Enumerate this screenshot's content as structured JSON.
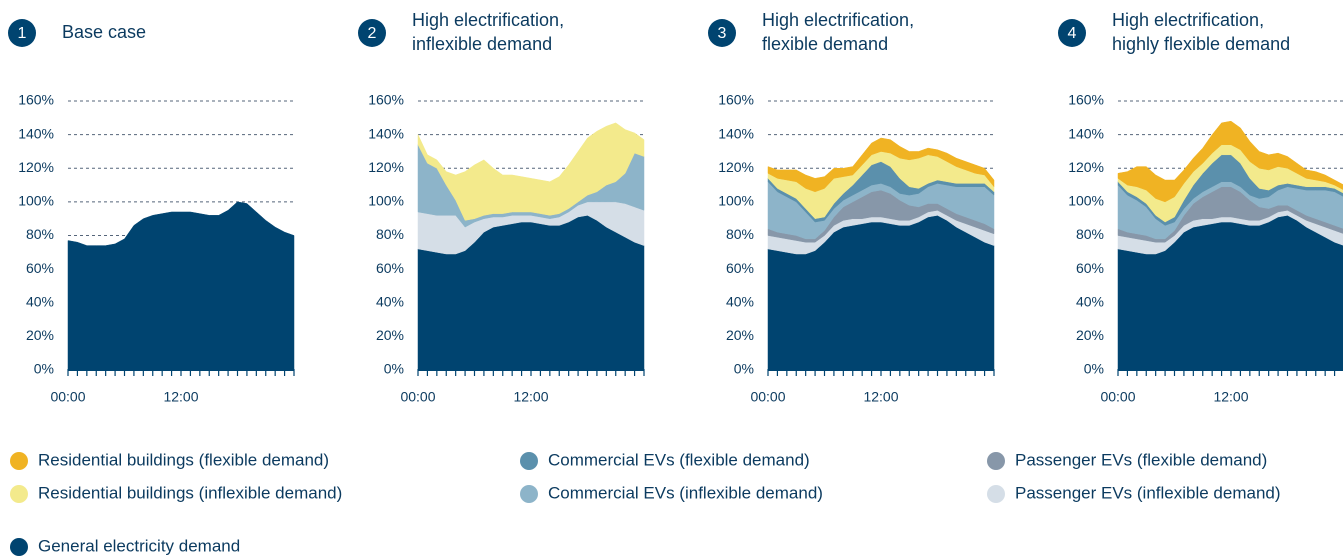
{
  "chart_data": [
    {
      "type": "area",
      "stacked": true,
      "number": 1,
      "title": [
        "Base case"
      ],
      "x": [
        0,
        1,
        2,
        3,
        4,
        5,
        6,
        7,
        8,
        9,
        10,
        11,
        12,
        13,
        14,
        15,
        16,
        17,
        18,
        19,
        20,
        21,
        22,
        23,
        24
      ],
      "xlim": [
        0,
        24
      ],
      "xticks": [
        {
          "value": 0,
          "label": "00:00"
        },
        {
          "value": 12,
          "label": "12:00"
        }
      ],
      "ylim": [
        0,
        160
      ],
      "yticks": [
        {
          "value": 0,
          "label": "0%"
        },
        {
          "value": 20,
          "label": "20%"
        },
        {
          "value": 40,
          "label": "40%"
        },
        {
          "value": 60,
          "label": "60%"
        },
        {
          "value": 80,
          "label": "80%"
        },
        {
          "value": 100,
          "label": "100%"
        },
        {
          "value": 120,
          "label": "120%"
        },
        {
          "value": 140,
          "label": "140%"
        },
        {
          "value": 160,
          "label": "160%"
        }
      ],
      "grid": true,
      "series": [
        {
          "name": "General electricity demand",
          "color": "#004470",
          "values": [
            77,
            76,
            74,
            74,
            74,
            75,
            78,
            86,
            90,
            92,
            93,
            94,
            94,
            94,
            93,
            92,
            92,
            95,
            100,
            99,
            94,
            89,
            85,
            82,
            80
          ]
        }
      ]
    },
    {
      "type": "area",
      "stacked": true,
      "number": 2,
      "title": [
        "High electrification,",
        "inflexible demand"
      ],
      "x": [
        0,
        1,
        2,
        3,
        4,
        5,
        6,
        7,
        8,
        9,
        10,
        11,
        12,
        13,
        14,
        15,
        16,
        17,
        18,
        19,
        20,
        21,
        22,
        23,
        24
      ],
      "xlim": [
        0,
        24
      ],
      "xticks": [
        {
          "value": 0,
          "label": "00:00"
        },
        {
          "value": 12,
          "label": "12:00"
        }
      ],
      "ylim": [
        0,
        160
      ],
      "yticks": [
        {
          "value": 0,
          "label": "0%"
        },
        {
          "value": 20,
          "label": "20%"
        },
        {
          "value": 40,
          "label": "40%"
        },
        {
          "value": 60,
          "label": "60%"
        },
        {
          "value": 80,
          "label": "80%"
        },
        {
          "value": 100,
          "label": "100%"
        },
        {
          "value": 120,
          "label": "120%"
        },
        {
          "value": 140,
          "label": "140%"
        },
        {
          "value": 160,
          "label": "160%"
        }
      ],
      "grid": true,
      "series": [
        {
          "name": "General electricity demand",
          "color": "#004470",
          "values": [
            72,
            71,
            70,
            69,
            69,
            71,
            76,
            82,
            85,
            86,
            87,
            88,
            88,
            87,
            86,
            86,
            88,
            91,
            92,
            89,
            85,
            82,
            79,
            76,
            74
          ]
        },
        {
          "name": "Passenger EVs (inflexible demand)",
          "color": "#d5dee7",
          "values": [
            22,
            22,
            22,
            23,
            23,
            14,
            12,
            8,
            6,
            5,
            5,
            4,
            4,
            4,
            4,
            5,
            6,
            7,
            8,
            11,
            15,
            18,
            20,
            21,
            21
          ]
        },
        {
          "name": "Commercial EVs (inflexible demand)",
          "color": "#8db4c9",
          "values": [
            40,
            30,
            28,
            18,
            9,
            4,
            2,
            2,
            2,
            2,
            2,
            2,
            2,
            2,
            2,
            2,
            2,
            2,
            4,
            6,
            10,
            12,
            18,
            32,
            32
          ]
        },
        {
          "name": "Residential buildings (inflexible demand)",
          "color": "#f3ea8c",
          "values": [
            6,
            5,
            5,
            8,
            15,
            29,
            32,
            33,
            27,
            23,
            22,
            21,
            20,
            20,
            20,
            22,
            26,
            30,
            34,
            36,
            35,
            35,
            26,
            12,
            10
          ]
        }
      ]
    },
    {
      "type": "area",
      "stacked": true,
      "number": 3,
      "title": [
        "High electrification,",
        "flexible demand"
      ],
      "x": [
        0,
        1,
        2,
        3,
        4,
        5,
        6,
        7,
        8,
        9,
        10,
        11,
        12,
        13,
        14,
        15,
        16,
        17,
        18,
        19,
        20,
        21,
        22,
        23,
        24
      ],
      "xlim": [
        0,
        24
      ],
      "xticks": [
        {
          "value": 0,
          "label": "00:00"
        },
        {
          "value": 12,
          "label": "12:00"
        }
      ],
      "ylim": [
        0,
        160
      ],
      "yticks": [
        {
          "value": 0,
          "label": "0%"
        },
        {
          "value": 20,
          "label": "20%"
        },
        {
          "value": 40,
          "label": "40%"
        },
        {
          "value": 60,
          "label": "60%"
        },
        {
          "value": 80,
          "label": "80%"
        },
        {
          "value": 100,
          "label": "100%"
        },
        {
          "value": 120,
          "label": "120%"
        },
        {
          "value": 140,
          "label": "140%"
        },
        {
          "value": 160,
          "label": "160%"
        }
      ],
      "grid": true,
      "series": [
        {
          "name": "General electricity demand",
          "color": "#004470",
          "values": [
            72,
            71,
            70,
            69,
            69,
            71,
            76,
            82,
            85,
            86,
            87,
            88,
            88,
            87,
            86,
            86,
            88,
            91,
            92,
            89,
            85,
            82,
            79,
            76,
            74
          ]
        },
        {
          "name": "Passenger EVs (inflexible demand)",
          "color": "#d5dee7",
          "values": [
            8,
            8,
            8,
            8,
            7,
            5,
            4,
            4,
            4,
            4,
            3,
            3,
            3,
            3,
            3,
            3,
            3,
            3,
            3,
            3,
            4,
            5,
            6,
            7,
            7
          ]
        },
        {
          "name": "Passenger EVs (flexible demand)",
          "color": "#8797a9",
          "values": [
            4,
            3,
            3,
            3,
            2,
            2,
            3,
            5,
            8,
            10,
            13,
            15,
            16,
            15,
            12,
            9,
            6,
            5,
            4,
            4,
            4,
            4,
            4,
            4,
            3
          ]
        },
        {
          "name": "Commercial EVs (inflexible demand)",
          "color": "#8db4c9",
          "values": [
            28,
            24,
            22,
            20,
            16,
            10,
            6,
            5,
            4,
            4,
            4,
            4,
            4,
            4,
            4,
            6,
            8,
            10,
            12,
            14,
            16,
            18,
            20,
            22,
            20
          ]
        },
        {
          "name": "Commercial EVs (flexible demand)",
          "color": "#5b90ac",
          "values": [
            2,
            2,
            2,
            2,
            2,
            2,
            2,
            3,
            4,
            6,
            9,
            12,
            13,
            12,
            9,
            5,
            3,
            2,
            2,
            2,
            2,
            2,
            2,
            2,
            2
          ]
        },
        {
          "name": "Residential buildings (inflexible demand)",
          "color": "#f3ea8c",
          "values": [
            3,
            6,
            8,
            10,
            12,
            16,
            17,
            15,
            10,
            6,
            6,
            6,
            6,
            8,
            12,
            16,
            18,
            17,
            14,
            12,
            10,
            8,
            6,
            5,
            3
          ]
        },
        {
          "name": "Residential buildings (flexible demand)",
          "color": "#f0b323",
          "values": [
            4,
            5,
            6,
            7,
            8,
            8,
            7,
            6,
            5,
            5,
            6,
            7,
            8,
            8,
            7,
            5,
            4,
            4,
            4,
            5,
            5,
            5,
            5,
            4,
            4
          ]
        }
      ]
    },
    {
      "type": "area",
      "stacked": true,
      "number": 4,
      "title": [
        "High electrification,",
        "highly flexible demand"
      ],
      "x": [
        0,
        1,
        2,
        3,
        4,
        5,
        6,
        7,
        8,
        9,
        10,
        11,
        12,
        13,
        14,
        15,
        16,
        17,
        18,
        19,
        20,
        21,
        22,
        23,
        24
      ],
      "xlim": [
        0,
        24
      ],
      "xticks": [
        {
          "value": 0,
          "label": "00:00"
        },
        {
          "value": 12,
          "label": "12:00"
        }
      ],
      "ylim": [
        0,
        160
      ],
      "yticks": [
        {
          "value": 0,
          "label": "0%"
        },
        {
          "value": 20,
          "label": "20%"
        },
        {
          "value": 40,
          "label": "40%"
        },
        {
          "value": 60,
          "label": "60%"
        },
        {
          "value": 80,
          "label": "80%"
        },
        {
          "value": 100,
          "label": "100%"
        },
        {
          "value": 120,
          "label": "120%"
        },
        {
          "value": 140,
          "label": "140%"
        },
        {
          "value": 160,
          "label": "160%"
        }
      ],
      "grid": true,
      "series": [
        {
          "name": "General electricity demand",
          "color": "#004470",
          "values": [
            72,
            71,
            70,
            69,
            69,
            71,
            76,
            82,
            85,
            86,
            87,
            88,
            88,
            87,
            86,
            86,
            88,
            91,
            92,
            89,
            85,
            82,
            79,
            76,
            74
          ]
        },
        {
          "name": "Passenger EVs (inflexible demand)",
          "color": "#d5dee7",
          "values": [
            8,
            8,
            8,
            8,
            7,
            5,
            4,
            4,
            4,
            4,
            3,
            3,
            3,
            3,
            3,
            3,
            3,
            3,
            3,
            3,
            4,
            5,
            6,
            7,
            7
          ]
        },
        {
          "name": "Passenger EVs (flexible demand)",
          "color": "#8797a9",
          "values": [
            4,
            3,
            3,
            3,
            2,
            2,
            3,
            6,
            10,
            13,
            16,
            18,
            18,
            16,
            12,
            8,
            5,
            4,
            3,
            3,
            3,
            3,
            3,
            3,
            3
          ]
        },
        {
          "name": "Commercial EVs (inflexible demand)",
          "color": "#8db4c9",
          "values": [
            26,
            22,
            20,
            17,
            12,
            8,
            5,
            4,
            3,
            3,
            3,
            3,
            3,
            3,
            3,
            5,
            7,
            9,
            11,
            13,
            15,
            17,
            19,
            20,
            19
          ]
        },
        {
          "name": "Commercial EVs (flexible demand)",
          "color": "#5b90ac",
          "values": [
            2,
            2,
            2,
            2,
            2,
            2,
            3,
            5,
            8,
            11,
            14,
            16,
            16,
            14,
            10,
            6,
            4,
            3,
            2,
            2,
            2,
            2,
            2,
            2,
            2
          ]
        },
        {
          "name": "Residential buildings (inflexible demand)",
          "color": "#f3ea8c",
          "values": [
            2,
            4,
            6,
            8,
            10,
            12,
            12,
            10,
            8,
            6,
            6,
            6,
            6,
            8,
            10,
            12,
            12,
            11,
            9,
            7,
            5,
            4,
            3,
            2,
            2
          ]
        },
        {
          "name": "Residential buildings (flexible demand)",
          "color": "#f0b323",
          "values": [
            3,
            8,
            12,
            14,
            14,
            13,
            10,
            8,
            8,
            9,
            11,
            13,
            14,
            13,
            12,
            10,
            9,
            8,
            7,
            6,
            5,
            5,
            4,
            3,
            3
          ]
        }
      ]
    }
  ]
}
